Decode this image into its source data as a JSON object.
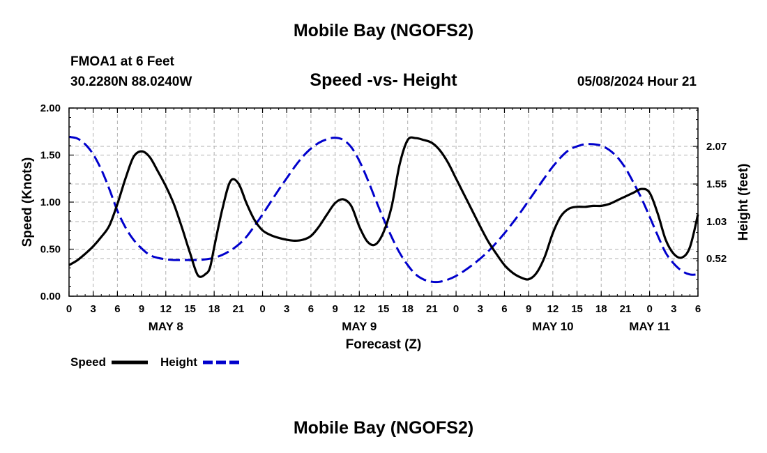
{
  "header": {
    "title": "Mobile Bay (NGOFS2)",
    "station": "FMOA1 at 6 Feet",
    "coords": "30.2280N  88.0240W",
    "subtitle": "Speed -vs- Height",
    "datetime": "05/08/2024 Hour 21",
    "footer_title": "Mobile Bay (NGOFS2)"
  },
  "chart_data": {
    "type": "line",
    "title": "Speed -vs- Height",
    "xlabel": "Forecast (Z)",
    "ylabel": "Speed (Knots)",
    "y2label": "Height (feet)",
    "x_unit": "hours since 00Z May 8",
    "xlim": [
      0,
      78
    ],
    "x_ticks": [
      0,
      3,
      6,
      9,
      12,
      15,
      18,
      21,
      24,
      27,
      30,
      33,
      36,
      39,
      42,
      45,
      48,
      51,
      54,
      57,
      60,
      63,
      66,
      69,
      72,
      75,
      78
    ],
    "x_tick_labels": [
      "0",
      "3",
      "6",
      "9",
      "12",
      "15",
      "18",
      "21",
      "0",
      "3",
      "6",
      "9",
      "12",
      "15",
      "18",
      "21",
      "0",
      "3",
      "6",
      "9",
      "12",
      "15",
      "18",
      "21",
      "0",
      "3",
      "6"
    ],
    "day_labels": [
      {
        "x": 12,
        "label": "MAY 8"
      },
      {
        "x": 36,
        "label": "MAY 9"
      },
      {
        "x": 60,
        "label": "MAY 10"
      },
      {
        "x": 72,
        "label": "MAY 11"
      }
    ],
    "ylim": [
      0,
      2
    ],
    "y_ticks": [
      0,
      0.5,
      1,
      1.5,
      2
    ],
    "y_tick_labels": [
      "0.00",
      "0.50",
      "1.00",
      "1.50",
      "2.00"
    ],
    "y2lim": [
      0,
      2.6
    ],
    "y2_ticks": [
      0.52,
      1.03,
      1.55,
      2.07
    ],
    "y2_tick_labels": [
      "0.52",
      "1.03",
      "1.55",
      "2.07"
    ],
    "grid": true,
    "legend": "bottom-left",
    "series": [
      {
        "name": "Speed",
        "axis": "left",
        "color": "#000000",
        "dash": "solid",
        "x": [
          0,
          1,
          2,
          3,
          4,
          5,
          6,
          7,
          8,
          9,
          10,
          11,
          12,
          13,
          14,
          15,
          16,
          17,
          17.5,
          18,
          19,
          20,
          21,
          22,
          23,
          24,
          25,
          26,
          27,
          28,
          29,
          30,
          31,
          32,
          33,
          34,
          35,
          36,
          37,
          38,
          39,
          40,
          41,
          42,
          43,
          44,
          45,
          46,
          47,
          48,
          49,
          50,
          51,
          52,
          53,
          54,
          55,
          56,
          57,
          58,
          59,
          60,
          61,
          62,
          63,
          64,
          65,
          66,
          67,
          68,
          69,
          70,
          71,
          72,
          73,
          74,
          75,
          76,
          77,
          78
        ],
        "values": [
          0.33,
          0.38,
          0.45,
          0.53,
          0.63,
          0.75,
          0.98,
          1.25,
          1.48,
          1.54,
          1.48,
          1.33,
          1.17,
          0.98,
          0.73,
          0.46,
          0.22,
          0.24,
          0.31,
          0.52,
          0.92,
          1.22,
          1.2,
          0.99,
          0.81,
          0.7,
          0.65,
          0.62,
          0.6,
          0.59,
          0.6,
          0.64,
          0.74,
          0.87,
          0.99,
          1.03,
          0.96,
          0.74,
          0.58,
          0.55,
          0.68,
          0.95,
          1.4,
          1.66,
          1.68,
          1.66,
          1.63,
          1.55,
          1.42,
          1.25,
          1.08,
          0.91,
          0.74,
          0.58,
          0.45,
          0.33,
          0.25,
          0.2,
          0.18,
          0.25,
          0.42,
          0.67,
          0.85,
          0.93,
          0.95,
          0.95,
          0.96,
          0.96,
          0.98,
          1.02,
          1.06,
          1.1,
          1.14,
          1.1,
          0.88,
          0.6,
          0.45,
          0.41,
          0.52,
          0.87
        ]
      },
      {
        "name": "Height",
        "axis": "right",
        "color": "#0000cc",
        "dash": "dashed",
        "x": [
          0,
          1,
          2,
          3,
          4,
          5,
          6,
          7,
          8,
          9,
          10,
          11,
          12,
          13,
          14,
          15,
          16,
          17,
          18,
          19,
          20,
          21,
          22,
          23,
          24,
          25,
          26,
          27,
          28,
          29,
          30,
          31,
          32,
          33,
          34,
          35,
          36,
          37,
          38,
          39,
          40,
          41,
          42,
          43,
          44,
          45,
          46,
          47,
          48,
          49,
          50,
          51,
          52,
          53,
          54,
          55,
          56,
          57,
          58,
          59,
          60,
          61,
          62,
          63,
          64,
          65,
          66,
          67,
          68,
          69,
          70,
          71,
          72,
          73,
          74,
          75,
          76,
          77,
          78
        ],
        "values": [
          2.2,
          2.18,
          2.1,
          1.96,
          1.75,
          1.48,
          1.18,
          0.95,
          0.78,
          0.66,
          0.57,
          0.53,
          0.51,
          0.5,
          0.5,
          0.5,
          0.5,
          0.51,
          0.53,
          0.57,
          0.63,
          0.71,
          0.82,
          0.97,
          1.13,
          1.3,
          1.47,
          1.63,
          1.79,
          1.93,
          2.04,
          2.12,
          2.17,
          2.19,
          2.16,
          2.06,
          1.87,
          1.62,
          1.34,
          1.07,
          0.82,
          0.6,
          0.43,
          0.3,
          0.23,
          0.2,
          0.2,
          0.23,
          0.28,
          0.35,
          0.43,
          0.52,
          0.62,
          0.74,
          0.87,
          1.01,
          1.16,
          1.32,
          1.48,
          1.64,
          1.79,
          1.92,
          2.02,
          2.07,
          2.1,
          2.1,
          2.08,
          2.02,
          1.92,
          1.77,
          1.57,
          1.35,
          1.1,
          0.84,
          0.6,
          0.45,
          0.35,
          0.3,
          0.3
        ]
      }
    ]
  }
}
